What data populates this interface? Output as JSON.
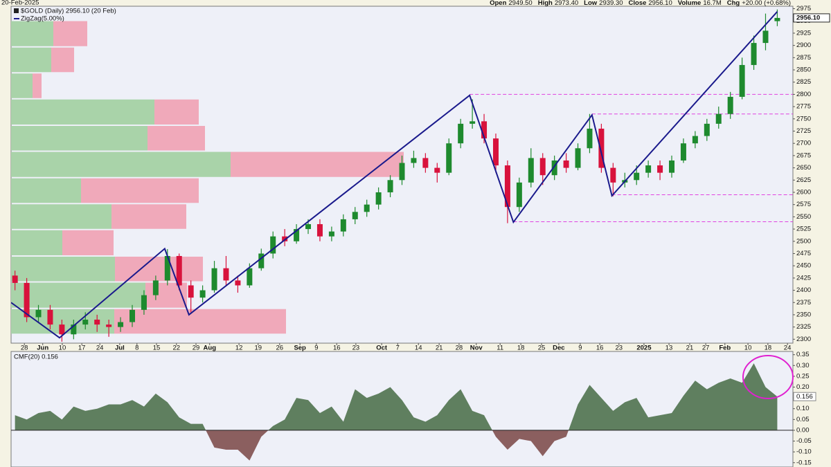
{
  "header": {
    "date": "20-Feb-2025",
    "quote": [
      {
        "label": "Open",
        "value": "2949.50"
      },
      {
        "label": "High",
        "value": "2973.40"
      },
      {
        "label": "Low",
        "value": "2939.30"
      },
      {
        "label": "Close",
        "value": "2956.10"
      },
      {
        "label": "Volume",
        "value": "16.7M"
      },
      {
        "label": "Chg",
        "value": "+20.00 (+0.68%)"
      }
    ]
  },
  "chart_data": [
    {
      "type": "candlestick",
      "title": "$GOLD (Daily) 2956.10 (20 Feb)",
      "last_label": "2956.10",
      "x": [
        1,
        4,
        7,
        10,
        13,
        16,
        19,
        22,
        25,
        28,
        31,
        34,
        37,
        40,
        43,
        46,
        49,
        52,
        55,
        58,
        61,
        64,
        67,
        70,
        73,
        76,
        79,
        82,
        85,
        88,
        91,
        94,
        97,
        100,
        103,
        106,
        109,
        112,
        115,
        118,
        121,
        124,
        127,
        130,
        133,
        136,
        139,
        142,
        145,
        148,
        151,
        154,
        157,
        160,
        163,
        166,
        169,
        172,
        175,
        178,
        181,
        184,
        187,
        190,
        193,
        196
      ],
      "open": [
        2430,
        2415,
        2345,
        2360,
        2330,
        2310,
        2330,
        2340,
        2330,
        2325,
        2335,
        2360,
        2390,
        2420,
        2470,
        2410,
        2385,
        2400,
        2445,
        2420,
        2410,
        2445,
        2475,
        2510,
        2500,
        2525,
        2535,
        2510,
        2520,
        2545,
        2560,
        2575,
        2600,
        2625,
        2660,
        2670,
        2650,
        2640,
        2700,
        2740,
        2745,
        2710,
        2655,
        2570,
        2620,
        2670,
        2635,
        2665,
        2650,
        2690,
        2730,
        2650,
        2620,
        2625,
        2640,
        2655,
        2640,
        2665,
        2700,
        2715,
        2740,
        2760,
        2795,
        2860,
        2905,
        2949.5
      ],
      "high": [
        2440,
        2425,
        2370,
        2370,
        2340,
        2340,
        2355,
        2350,
        2340,
        2345,
        2370,
        2400,
        2430,
        2484,
        2475,
        2420,
        2410,
        2460,
        2470,
        2430,
        2455,
        2485,
        2520,
        2525,
        2535,
        2545,
        2545,
        2530,
        2555,
        2570,
        2585,
        2610,
        2635,
        2675,
        2685,
        2680,
        2660,
        2710,
        2750,
        2790,
        2760,
        2720,
        2665,
        2630,
        2690,
        2680,
        2675,
        2680,
        2700,
        2760,
        2740,
        2660,
        2640,
        2655,
        2665,
        2665,
        2675,
        2710,
        2725,
        2750,
        2775,
        2805,
        2875,
        2920,
        2965,
        2973.4
      ],
      "low": [
        2400,
        2335,
        2335,
        2320,
        2295,
        2300,
        2320,
        2315,
        2305,
        2315,
        2325,
        2350,
        2380,
        2410,
        2400,
        2355,
        2375,
        2395,
        2410,
        2395,
        2405,
        2440,
        2465,
        2490,
        2495,
        2515,
        2500,
        2500,
        2510,
        2535,
        2550,
        2565,
        2590,
        2615,
        2650,
        2640,
        2620,
        2635,
        2690,
        2730,
        2700,
        2640,
        2537,
        2560,
        2610,
        2615,
        2625,
        2640,
        2645,
        2680,
        2640,
        2592,
        2610,
        2615,
        2630,
        2625,
        2630,
        2660,
        2690,
        2705,
        2730,
        2750,
        2790,
        2850,
        2890,
        2939.3
      ],
      "close": [
        2415,
        2345,
        2360,
        2330,
        2310,
        2330,
        2340,
        2330,
        2325,
        2335,
        2360,
        2390,
        2420,
        2470,
        2410,
        2385,
        2400,
        2445,
        2420,
        2410,
        2445,
        2475,
        2510,
        2500,
        2525,
        2535,
        2510,
        2520,
        2545,
        2560,
        2575,
        2600,
        2625,
        2660,
        2670,
        2650,
        2640,
        2700,
        2740,
        2745,
        2710,
        2655,
        2570,
        2620,
        2670,
        2635,
        2665,
        2650,
        2690,
        2730,
        2650,
        2620,
        2625,
        2640,
        2655,
        2640,
        2665,
        2700,
        2715,
        2740,
        2760,
        2795,
        2860,
        2905,
        2930,
        2956.1
      ],
      "up_color": "#1e8a2e",
      "down_color": "#d8123c",
      "xlim": [
        0,
        200
      ],
      "xticks": [
        {
          "value": 3.4,
          "label": "28"
        },
        {
          "value": 8.1,
          "label": "Jun"
        },
        {
          "value": 13.1,
          "label": "10"
        },
        {
          "value": 18.1,
          "label": "17"
        },
        {
          "value": 22.7,
          "label": "24"
        },
        {
          "value": 27.8,
          "label": "Jul"
        },
        {
          "value": 32.2,
          "label": "8"
        },
        {
          "value": 37.2,
          "label": "15"
        },
        {
          "value": 42.3,
          "label": "22"
        },
        {
          "value": 47.3,
          "label": "29"
        },
        {
          "value": 50.8,
          "label": "Aug"
        },
        {
          "value": 58.3,
          "label": "12"
        },
        {
          "value": 63.2,
          "label": "19"
        },
        {
          "value": 68.7,
          "label": "26"
        },
        {
          "value": 73.9,
          "label": "Sep"
        },
        {
          "value": 78.1,
          "label": "9"
        },
        {
          "value": 83.3,
          "label": "16"
        },
        {
          "value": 88.2,
          "label": "23"
        },
        {
          "value": 94.8,
          "label": "Oct"
        },
        {
          "value": 98.9,
          "label": "7"
        },
        {
          "value": 104.2,
          "label": "14"
        },
        {
          "value": 109.5,
          "label": "21"
        },
        {
          "value": 114.6,
          "label": "28"
        },
        {
          "value": 119,
          "label": "Nov"
        },
        {
          "value": 125.1,
          "label": "11"
        },
        {
          "value": 130.4,
          "label": "18"
        },
        {
          "value": 135.7,
          "label": "25"
        },
        {
          "value": 140.1,
          "label": "Dec"
        },
        {
          "value": 145.6,
          "label": "9"
        },
        {
          "value": 150.6,
          "label": "16"
        },
        {
          "value": 155.5,
          "label": "23"
        },
        {
          "value": 161.9,
          "label": "2025"
        },
        {
          "value": 168.3,
          "label": "13"
        },
        {
          "value": 173.6,
          "label": "21"
        },
        {
          "value": 177.7,
          "label": "27"
        },
        {
          "value": 182.6,
          "label": "Feb"
        },
        {
          "value": 188.5,
          "label": "10"
        },
        {
          "value": 193.6,
          "label": "18"
        },
        {
          "value": 198.6,
          "label": "24"
        }
      ],
      "ylim": [
        2292,
        2980
      ],
      "yticks": [
        2300,
        2325,
        2350,
        2375,
        2400,
        2425,
        2450,
        2475,
        2500,
        2525,
        2550,
        2575,
        2600,
        2625,
        2650,
        2675,
        2700,
        2725,
        2750,
        2775,
        2800,
        2825,
        2850,
        2875,
        2900,
        2925,
        2950,
        2975
      ],
      "zigzag": {
        "name": "ZigZag(5.00%)",
        "color": "#1a1a8c",
        "x": [
          0,
          12.4,
          39.3,
          45.5,
          117.3,
          128.5,
          148.6,
          153.7,
          196
        ],
        "y": [
          2375,
          2303,
          2485,
          2350,
          2798,
          2539,
          2758,
          2593,
          2969
        ]
      },
      "hlines": {
        "color": "#e040e0",
        "y": [
          2800,
          2760,
          2595,
          2540
        ],
        "x_start": [
          117.3,
          148.6,
          153.7,
          128.5
        ]
      },
      "volume_by_price": {
        "bins": [
          2310,
          2363,
          2417,
          2470,
          2524,
          2577,
          2630,
          2684,
          2737,
          2791,
          2844,
          2897,
          2951
        ],
        "up": [
          149,
          194,
          150,
          74,
          145,
          101,
          317,
          197,
          207,
          31,
          58,
          61
        ],
        "down": [
          248,
          60,
          127,
          74,
          108,
          170,
          250,
          83,
          64,
          13,
          33,
          49
        ],
        "up_color": "#a9d3a9",
        "down_color": "#f0a9ba"
      }
    },
    {
      "type": "area",
      "title": "CMF(20) 0.156",
      "x": [
        1,
        4,
        7,
        10,
        13,
        16,
        19,
        22,
        25,
        28,
        31,
        34,
        37,
        40,
        43,
        46,
        49,
        52,
        55,
        58,
        61,
        64,
        67,
        70,
        73,
        76,
        79,
        82,
        85,
        88,
        91,
        94,
        97,
        100,
        103,
        106,
        109,
        112,
        115,
        118,
        121,
        124,
        127,
        130,
        133,
        136,
        139,
        142,
        145,
        148,
        151,
        154,
        157,
        160,
        163,
        166,
        169,
        172,
        175,
        178,
        181,
        184,
        187,
        190,
        193,
        196
      ],
      "values": [
        0.07,
        0.05,
        0.08,
        0.09,
        0.05,
        0.11,
        0.09,
        0.1,
        0.12,
        0.12,
        0.14,
        0.11,
        0.17,
        0.13,
        0.06,
        0.03,
        0.03,
        -0.08,
        -0.09,
        -0.09,
        -0.14,
        -0.03,
        0.02,
        0.05,
        0.15,
        0.14,
        0.08,
        0.11,
        0.04,
        0.19,
        0.15,
        0.17,
        0.2,
        0.14,
        0.06,
        0.04,
        0.07,
        0.14,
        0.19,
        0.09,
        0.07,
        -0.03,
        -0.09,
        -0.04,
        -0.05,
        -0.12,
        -0.05,
        -0.03,
        0.12,
        0.21,
        0.15,
        0.09,
        0.13,
        0.15,
        0.06,
        0.07,
        0.08,
        0.16,
        0.23,
        0.19,
        0.22,
        0.24,
        0.22,
        0.31,
        0.2,
        0.156
      ],
      "color": "#5f7f5f",
      "negative_color": "#8b5f5f",
      "xlim": [
        0,
        200
      ],
      "ylim": [
        -0.17,
        0.365
      ],
      "yticks": [
        0.35,
        {
          "value": 0.3,
          "label": "0.30"
        },
        0.25,
        {
          "value": 0.2,
          "label": "0.20"
        },
        0.15,
        {
          "value": 0.1,
          "label": "0.10"
        },
        0.05,
        {
          "value": 0,
          "label": "0.00"
        },
        -0.05,
        {
          "value": -0.1,
          "label": "-0.10"
        },
        -0.15
      ]
    }
  ]
}
